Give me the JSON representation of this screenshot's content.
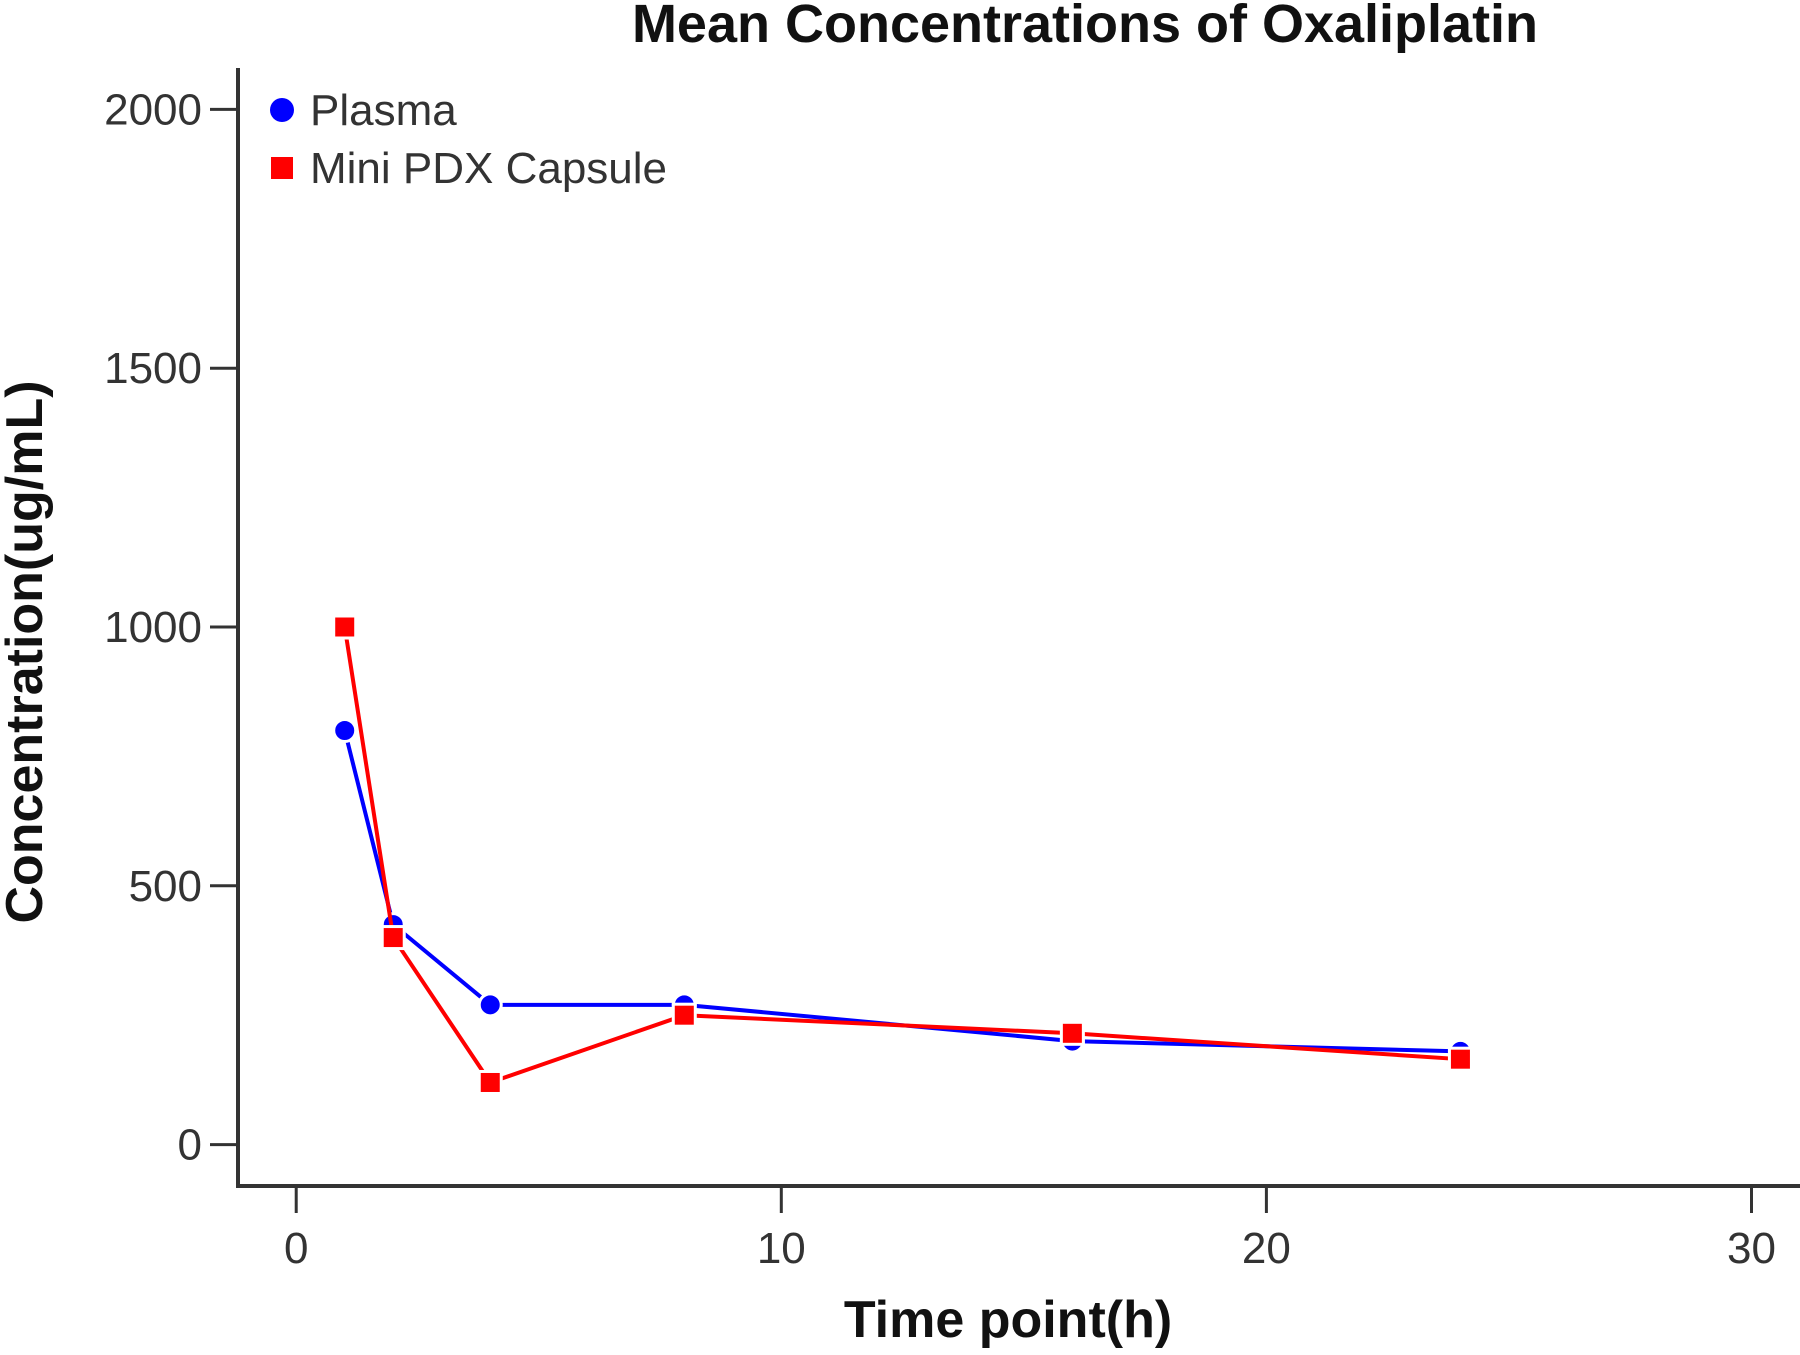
{
  "chart_data": {
    "type": "line",
    "title": "Mean Concentrations of Oxaliplatin",
    "xlabel": "Time point(h)",
    "ylabel": "Concentration(ug/mL)",
    "xlim": [
      -1.2,
      31
    ],
    "ylim": [
      -80,
      2080
    ],
    "xticks": [
      0,
      10,
      20,
      30
    ],
    "yticks": [
      0,
      500,
      1000,
      1500,
      2000
    ],
    "x": [
      1,
      2,
      4,
      8,
      16,
      24
    ],
    "series": [
      {
        "name": "Plasma",
        "marker": "circle",
        "color": "#0000ff",
        "values": [
          800,
          425,
          270,
          270,
          200,
          180
        ]
      },
      {
        "name": "Mini PDX Capsule",
        "marker": "square",
        "color": "#ff0000",
        "values": [
          1000,
          400,
          120,
          250,
          215,
          165
        ]
      }
    ],
    "grid": false,
    "legend_position": "top-left"
  }
}
